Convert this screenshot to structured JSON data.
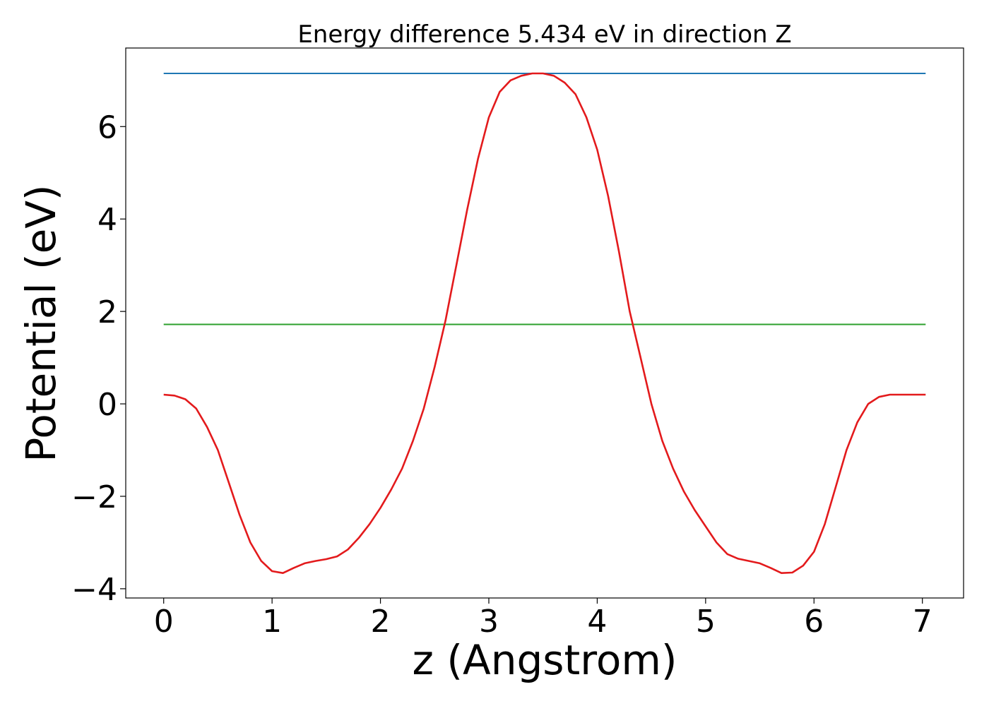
{
  "chart_data": {
    "type": "line",
    "title": "Energy difference 5.434 eV in direction Z",
    "xlabel": "z (Angstrom)",
    "ylabel": "Potential (eV)",
    "xlim": [
      -0.35,
      7.38
    ],
    "ylim": [
      -4.2,
      7.7
    ],
    "xticks": [
      0,
      1,
      2,
      3,
      4,
      5,
      6,
      7
    ],
    "yticks": [
      -4,
      -2,
      0,
      2,
      4,
      6
    ],
    "xtick_labels": [
      "0",
      "1",
      "2",
      "3",
      "4",
      "5",
      "6",
      "7"
    ],
    "ytick_labels": [
      "−4",
      "−2",
      "0",
      "2",
      "4",
      "6"
    ],
    "grid": false,
    "legend": "none",
    "series": [
      {
        "color": "#1f77b4",
        "x": [
          0,
          7.03
        ],
        "y": [
          7.15,
          7.15
        ]
      },
      {
        "color": "#2ca02c",
        "x": [
          0,
          7.03
        ],
        "y": [
          1.72,
          1.72
        ]
      },
      {
        "color": "#e31a1c",
        "x": [
          0,
          0.1,
          0.2,
          0.3,
          0.4,
          0.5,
          0.6,
          0.7,
          0.8,
          0.9,
          1.0,
          1.1,
          1.2,
          1.3,
          1.4,
          1.5,
          1.6,
          1.7,
          1.8,
          1.9,
          2.0,
          2.1,
          2.2,
          2.3,
          2.4,
          2.5,
          2.6,
          2.7,
          2.8,
          2.9,
          3.0,
          3.1,
          3.2,
          3.3,
          3.4,
          3.5,
          3.6,
          3.7,
          3.8,
          3.9,
          4.0,
          4.1,
          4.2,
          4.3,
          4.4,
          4.5,
          4.6,
          4.7,
          4.8,
          4.9,
          5.0,
          5.1,
          5.2,
          5.3,
          5.4,
          5.5,
          5.6,
          5.7,
          5.8,
          5.9,
          6.0,
          6.1,
          6.2,
          6.3,
          6.4,
          6.5,
          6.6,
          6.7,
          6.8,
          6.9,
          7.0,
          7.03
        ],
        "y": [
          0.2,
          0.18,
          0.1,
          -0.1,
          -0.5,
          -1.0,
          -1.7,
          -2.4,
          -3.0,
          -3.4,
          -3.62,
          -3.66,
          -3.55,
          -3.45,
          -3.4,
          -3.36,
          -3.3,
          -3.15,
          -2.9,
          -2.6,
          -2.25,
          -1.85,
          -1.4,
          -0.8,
          -0.1,
          0.8,
          1.8,
          3.0,
          4.2,
          5.3,
          6.2,
          6.75,
          7.0,
          7.1,
          7.15,
          7.15,
          7.1,
          6.95,
          6.7,
          6.2,
          5.5,
          4.5,
          3.3,
          2.0,
          1.0,
          0.0,
          -0.8,
          -1.4,
          -1.9,
          -2.3,
          -2.65,
          -3.0,
          -3.25,
          -3.35,
          -3.4,
          -3.45,
          -3.55,
          -3.66,
          -3.65,
          -3.5,
          -3.2,
          -2.6,
          -1.8,
          -1.0,
          -0.4,
          0.0,
          0.15,
          0.2,
          0.2,
          0.2,
          0.2,
          0.2
        ]
      }
    ]
  }
}
